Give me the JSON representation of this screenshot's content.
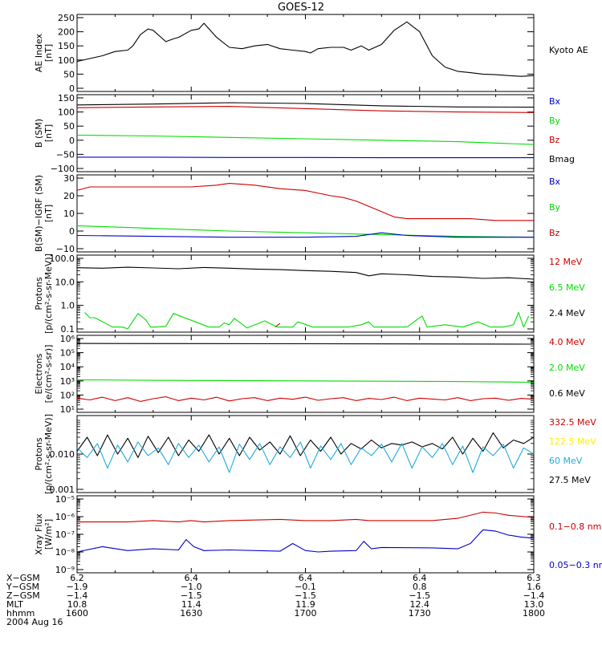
{
  "title": "GOES-12",
  "colors": {
    "black": "#000000",
    "red": "#cc0000",
    "green": "#00dd00",
    "blue": "#0000cc",
    "yellow": "#ffee00",
    "cyan": "#22aadd"
  },
  "chart_data": [
    {
      "type": "line",
      "ylabel": "AE Index\n[nT]",
      "ylim": [
        0,
        250
      ],
      "yticks": [
        "0",
        "50",
        "100",
        "150",
        "200",
        "250"
      ],
      "ytick_values": [
        0,
        50,
        100,
        150,
        200,
        250
      ],
      "legend": [
        {
          "label": "Kyoto AE",
          "color": "black"
        }
      ],
      "series": [
        {
          "name": "Kyoto AE",
          "color": "black",
          "x": [
            0,
            5,
            10,
            15,
            20,
            22,
            25,
            28,
            30,
            35,
            38,
            40,
            45,
            48,
            50,
            55,
            60,
            65,
            70,
            75,
            80,
            85,
            90,
            92,
            95,
            100,
            105,
            108,
            112,
            115,
            120,
            125,
            130,
            135,
            140,
            145,
            150,
            155,
            160,
            165,
            170,
            175,
            180
          ],
          "y": [
            95,
            105,
            115,
            130,
            135,
            150,
            190,
            210,
            205,
            165,
            175,
            180,
            205,
            210,
            230,
            180,
            145,
            140,
            150,
            155,
            140,
            135,
            130,
            125,
            140,
            145,
            145,
            135,
            150,
            135,
            155,
            205,
            235,
            200,
            115,
            75,
            60,
            55,
            50,
            48,
            45,
            42,
            45
          ]
        }
      ]
    },
    {
      "type": "line",
      "ylabel": "B (SM)\n[nT]",
      "ylim": [
        -100,
        150
      ],
      "yticks": [
        "−100",
        "−50",
        "0",
        "50",
        "100",
        "150"
      ],
      "ytick_values": [
        -100,
        -50,
        0,
        50,
        100,
        150
      ],
      "legend": [
        {
          "label": "Bx",
          "color": "blue"
        },
        {
          "label": "By",
          "color": "green"
        },
        {
          "label": "Bz",
          "color": "red"
        },
        {
          "label": "Bmag",
          "color": "black"
        }
      ],
      "series": [
        {
          "name": "Bmag",
          "color": "black",
          "x": [
            0,
            30,
            60,
            90,
            120,
            150,
            180
          ],
          "y": [
            125,
            128,
            133,
            130,
            122,
            118,
            117
          ]
        },
        {
          "name": "Bz",
          "color": "red",
          "x": [
            0,
            30,
            60,
            90,
            120,
            150,
            180
          ],
          "y": [
            115,
            118,
            120,
            112,
            104,
            100,
            98
          ]
        },
        {
          "name": "By",
          "color": "green",
          "x": [
            0,
            30,
            60,
            90,
            120,
            150,
            180
          ],
          "y": [
            18,
            15,
            10,
            5,
            0,
            -5,
            -15
          ]
        },
        {
          "name": "Bx",
          "color": "blue",
          "x": [
            0,
            30,
            60,
            90,
            120,
            150,
            180
          ],
          "y": [
            -60,
            -60,
            -61,
            -61,
            -62,
            -62,
            -62
          ]
        }
      ]
    },
    {
      "type": "line",
      "ylabel": "B(SM)−IGRF (SM)\n[nT]",
      "ylim": [
        -10,
        30
      ],
      "yticks": [
        "−10",
        "0",
        "10",
        "20",
        "30"
      ],
      "ytick_values": [
        -10,
        0,
        10,
        20,
        30
      ],
      "legend": [
        {
          "label": "Bx",
          "color": "blue"
        },
        {
          "label": "By",
          "color": "green"
        },
        {
          "label": "Bz",
          "color": "red"
        }
      ],
      "series": [
        {
          "name": "Bz",
          "color": "red",
          "x": [
            0,
            5,
            30,
            45,
            55,
            60,
            70,
            80,
            90,
            100,
            105,
            110,
            115,
            120,
            125,
            130,
            135,
            155,
            165,
            180
          ],
          "y": [
            23,
            25,
            25,
            25,
            26,
            27,
            26,
            24,
            23,
            20,
            19,
            17,
            14,
            11,
            8,
            7,
            7,
            7,
            6,
            6
          ]
        },
        {
          "name": "By",
          "color": "green",
          "x": [
            0,
            30,
            60,
            90,
            120,
            150,
            180
          ],
          "y": [
            3,
            1.5,
            0,
            -1,
            -2,
            -3,
            -3.5
          ]
        },
        {
          "name": "Bx",
          "color": "blue",
          "x": [
            0,
            30,
            60,
            90,
            110,
            120,
            130,
            150,
            180
          ],
          "y": [
            -2.5,
            -3,
            -3.5,
            -3.5,
            -3,
            -1,
            -2.5,
            -3.5,
            -3.5
          ]
        }
      ]
    },
    {
      "type": "line",
      "scale": "log",
      "ylabel": "Protons\n[p/(cm²-s-sr-MeV)]",
      "ylim": [
        0.1,
        100
      ],
      "yticks": [
        "0.1",
        "1.0",
        "10.0",
        "100.0"
      ],
      "ytick_values": [
        0.1,
        1,
        10,
        100
      ],
      "legend": [
        {
          "label": "12 MeV",
          "color": "red"
        },
        {
          "label": "6.5 MeV",
          "color": "green"
        },
        {
          "label": "2.4 MeV",
          "color": "black"
        }
      ],
      "series": [
        {
          "name": "2.4 MeV",
          "color": "black",
          "x": [
            0,
            10,
            20,
            30,
            40,
            50,
            60,
            70,
            80,
            90,
            100,
            110,
            115,
            120,
            130,
            140,
            150,
            160,
            170,
            180
          ],
          "y": [
            40,
            38,
            42,
            39,
            36,
            41,
            38,
            35,
            33,
            30,
            28,
            25,
            18,
            22,
            20,
            17,
            16,
            14,
            15,
            13
          ]
        },
        {
          "name": "12 MeV",
          "color": "red",
          "x": [
            78,
            80
          ],
          "y": [
            0.12,
            0.17
          ]
        },
        {
          "name": "6.5 MeV",
          "color": "green",
          "x": [
            3,
            5,
            7,
            14,
            18,
            20,
            24,
            27,
            29,
            31,
            35,
            38,
            52,
            56,
            58,
            60,
            62,
            67,
            74,
            79,
            85,
            87,
            93,
            107,
            112,
            115,
            117,
            119,
            125,
            130,
            134,
            136,
            138,
            145,
            152,
            158,
            163,
            168,
            172,
            174,
            176,
            178
          ],
          "y": [
            0.5,
            0.3,
            0.3,
            0.12,
            0.12,
            0.1,
            0.45,
            0.25,
            0.12,
            0.12,
            0.13,
            0.45,
            0.12,
            0.12,
            0.18,
            0.15,
            0.28,
            0.11,
            0.22,
            0.12,
            0.12,
            0.2,
            0.12,
            0.12,
            0.15,
            0.2,
            0.12,
            0.12,
            0.12,
            0.12,
            0.25,
            0.35,
            0.12,
            0.15,
            0.12,
            0.2,
            0.12,
            0.12,
            0.15,
            0.5,
            0.12,
            0.35
          ]
        }
      ]
    },
    {
      "type": "line",
      "scale": "log",
      "ylabel": "Electrons\n[e/(cm²-s-sr)]",
      "ylim": [
        10,
        1000000
      ],
      "yticks": [
        "10¹",
        "10²",
        "10³",
        "10⁴",
        "10⁵",
        "10⁶"
      ],
      "ytick_values": [
        10,
        100,
        1000,
        10000,
        100000,
        1000000
      ],
      "legend": [
        {
          "label": "4.0 MeV",
          "color": "red"
        },
        {
          "label": "2.0 MeV",
          "color": "green"
        },
        {
          "label": "0.6 MeV",
          "color": "black"
        }
      ],
      "series": [
        {
          "name": "0.6 MeV",
          "color": "black",
          "x": [
            0,
            90,
            180
          ],
          "y": [
            450000,
            430000,
            400000
          ]
        },
        {
          "name": "2.0 MeV",
          "color": "green",
          "x": [
            0,
            30,
            60,
            90,
            120,
            150,
            180
          ],
          "y": [
            1200,
            1100,
            1050,
            1000,
            950,
            900,
            800
          ]
        },
        {
          "name": "4.0 MeV",
          "color": "red",
          "x": [
            0,
            5,
            10,
            15,
            20,
            25,
            30,
            35,
            40,
            45,
            50,
            55,
            60,
            65,
            70,
            75,
            80,
            85,
            90,
            95,
            100,
            105,
            110,
            115,
            120,
            125,
            130,
            135,
            140,
            145,
            150,
            155,
            160,
            165,
            170,
            175,
            180
          ],
          "y": [
            60,
            45,
            70,
            40,
            65,
            35,
            55,
            75,
            40,
            60,
            45,
            70,
            38,
            55,
            65,
            40,
            60,
            50,
            70,
            42,
            55,
            65,
            40,
            58,
            48,
            70,
            40,
            60,
            52,
            45,
            65,
            40,
            55,
            60,
            42,
            58,
            50
          ]
        }
      ]
    },
    {
      "type": "line",
      "scale": "log",
      "ylabel": "Protons\n[p/(cm²-s-sr-MeV)]",
      "ylim": [
        0.001,
        0.1
      ],
      "yticks": [
        "0.001",
        "0.010"
      ],
      "ytick_values": [
        0.001,
        0.01
      ],
      "legend": [
        {
          "label": "332.5 MeV",
          "color": "red"
        },
        {
          "label": "122.5 MeV",
          "color": "yellow"
        },
        {
          "label": "60 MeV",
          "color": "cyan"
        },
        {
          "label": "27.5 MeV",
          "color": "black"
        }
      ],
      "series": [
        {
          "name": "27.5 MeV",
          "color": "black",
          "x": [
            0,
            4,
            8,
            12,
            16,
            20,
            24,
            28,
            32,
            36,
            40,
            44,
            48,
            52,
            56,
            60,
            64,
            68,
            72,
            76,
            80,
            84,
            88,
            92,
            96,
            100,
            104,
            108,
            112,
            116,
            120,
            124,
            128,
            132,
            136,
            140,
            144,
            148,
            152,
            156,
            160,
            164,
            168,
            172,
            176,
            180
          ],
          "y": [
            0.012,
            0.03,
            0.009,
            0.035,
            0.01,
            0.028,
            0.008,
            0.032,
            0.011,
            0.03,
            0.009,
            0.025,
            0.012,
            0.035,
            0.01,
            0.028,
            0.009,
            0.03,
            0.013,
            0.022,
            0.01,
            0.033,
            0.009,
            0.025,
            0.012,
            0.03,
            0.01,
            0.02,
            0.014,
            0.025,
            0.015,
            0.02,
            0.018,
            0.022,
            0.016,
            0.02,
            0.014,
            0.03,
            0.01,
            0.028,
            0.012,
            0.04,
            0.015,
            0.025,
            0.02,
            0.03
          ]
        },
        {
          "name": "60 MeV",
          "color": "cyan",
          "x": [
            0,
            4,
            8,
            12,
            16,
            20,
            24,
            28,
            32,
            36,
            40,
            44,
            48,
            52,
            56,
            60,
            64,
            68,
            72,
            76,
            80,
            84,
            88,
            92,
            96,
            100,
            104,
            108,
            112,
            116,
            120,
            124,
            128,
            132,
            136,
            140,
            144,
            148,
            152,
            156,
            160,
            164,
            168,
            172,
            176,
            180
          ],
          "y": [
            0.015,
            0.008,
            0.02,
            0.004,
            0.018,
            0.006,
            0.022,
            0.009,
            0.015,
            0.005,
            0.02,
            0.008,
            0.018,
            0.006,
            0.016,
            0.003,
            0.019,
            0.007,
            0.02,
            0.005,
            0.016,
            0.008,
            0.022,
            0.004,
            0.017,
            0.007,
            0.02,
            0.005,
            0.015,
            0.009,
            0.019,
            0.006,
            0.02,
            0.004,
            0.016,
            0.008,
            0.02,
            0.005,
            0.017,
            0.003,
            0.016,
            0.009,
            0.019,
            0.004,
            0.015,
            0.01
          ]
        }
      ]
    },
    {
      "type": "line",
      "scale": "log",
      "ylabel": "Xray Flux\n[W/m²]",
      "ylim": [
        1e-09,
        1e-05
      ],
      "yticks": [
        "10⁻⁹",
        "10⁻⁸",
        "10⁻⁷",
        "10⁻⁶",
        "10⁻⁵"
      ],
      "ytick_values": [
        1e-09,
        1e-08,
        1e-07,
        1e-06,
        1e-05
      ],
      "legend": [
        {
          "label": "0.1−0.8 nm",
          "color": "red"
        },
        {
          "label": "0.05−0.3 nm",
          "color": "blue"
        }
      ],
      "series": [
        {
          "name": "0.1−0.8 nm",
          "color": "red",
          "x": [
            0,
            20,
            30,
            40,
            45,
            50,
            60,
            80,
            90,
            100,
            110,
            115,
            120,
            140,
            150,
            160,
            165,
            170,
            180
          ],
          "y": [
            5e-07,
            5e-07,
            6e-07,
            5e-07,
            6e-07,
            5e-07,
            6e-07,
            7e-07,
            6e-07,
            6e-07,
            7e-07,
            6e-07,
            6e-07,
            6e-07,
            8e-07,
            1.8e-06,
            1.6e-06,
            1.2e-06,
            9e-07
          ]
        },
        {
          "name": "0.05−0.3 nm",
          "color": "blue",
          "x": [
            0,
            10,
            20,
            30,
            40,
            43,
            46,
            50,
            60,
            80,
            85,
            90,
            95,
            100,
            110,
            113,
            116,
            120,
            140,
            150,
            155,
            160,
            165,
            170,
            175,
            180
          ],
          "y": [
            1e-08,
            2e-08,
            1.2e-08,
            1.5e-08,
            1.3e-08,
            5e-08,
            2e-08,
            1.2e-08,
            1.3e-08,
            1.1e-08,
            3e-08,
            1.2e-08,
            1e-08,
            1.1e-08,
            1.2e-08,
            4e-08,
            1.5e-08,
            1.8e-08,
            1.7e-08,
            1.5e-08,
            3e-08,
            1.8e-07,
            1.5e-07,
            9e-08,
            7e-08,
            6e-08
          ]
        }
      ]
    }
  ],
  "footer": {
    "row_labels": [
      "X−GSM",
      "Y−GSM",
      "Z−GSM",
      "MLT",
      "hhmm",
      "2004 Aug 16"
    ],
    "columns": [
      {
        "x": 0,
        "values": [
          "6.2",
          "−1.9",
          "−1.4",
          "10.8",
          "1600"
        ]
      },
      {
        "x": 30,
        "values": [
          "6.4",
          "−1.0",
          "−1.5",
          "11.4",
          "1630"
        ]
      },
      {
        "x": 60,
        "values": [
          "6.4",
          "−0.1",
          "−1.5",
          "11.9",
          "1700"
        ]
      },
      {
        "x": 90,
        "values": [
          "6.4",
          "0.8",
          "−1.5",
          "12.4",
          "1730"
        ]
      },
      {
        "x": 120,
        "values": [
          "6.3",
          "1.6",
          "−1.4",
          "13.0",
          "1800"
        ]
      }
    ]
  }
}
